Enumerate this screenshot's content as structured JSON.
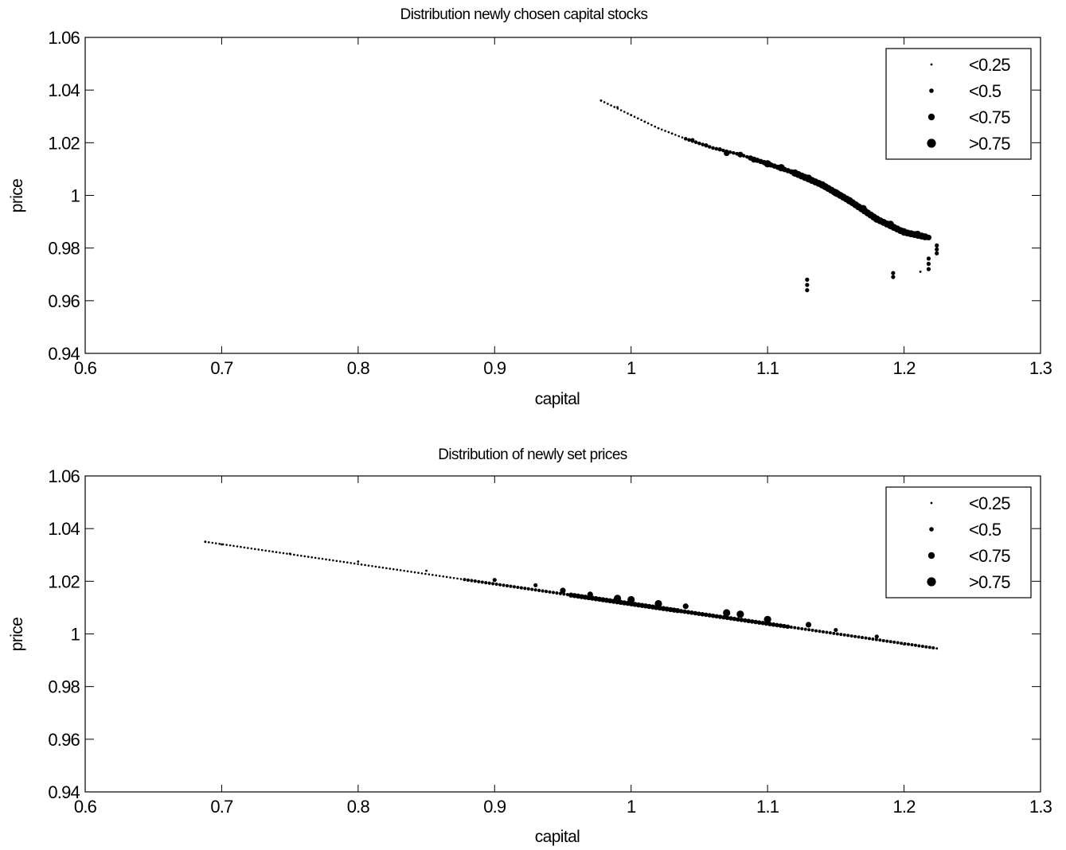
{
  "chart_data": [
    {
      "type": "scatter",
      "title": "Distribution newly chosen capital stocks",
      "xlabel": "capital",
      "ylabel": "price",
      "xlim": [
        0.6,
        1.3
      ],
      "ylim": [
        0.94,
        1.06
      ],
      "xticks": [
        "0.6",
        "0.7",
        "0.8",
        "0.9",
        "1",
        "1.1",
        "1.2",
        "1.3"
      ],
      "yticks": [
        "0.94",
        "0.96",
        "0.98",
        "1",
        "1.02",
        "1.04",
        "1.06"
      ],
      "grid": false,
      "legend_position": "top-right",
      "legend": [
        "<0.25",
        "<0.5",
        "<0.75",
        ">0.75"
      ],
      "curve": {
        "x": [
          0.978,
          1.0,
          1.02,
          1.04,
          1.06,
          1.08,
          1.1,
          1.12,
          1.14,
          1.16,
          1.18,
          1.2,
          1.218
        ],
        "y": [
          1.036,
          1.0305,
          1.0255,
          1.0215,
          1.018,
          1.0155,
          1.012,
          1.0085,
          1.004,
          0.998,
          0.991,
          0.986,
          0.984
        ]
      },
      "series": [
        {
          "name": "<0.25",
          "x": [
            0.978,
            0.99,
            1.0,
            1.01,
            1.02,
            1.03,
            1.04,
            1.212
          ],
          "y": [
            1.036,
            1.0335,
            1.0305,
            1.028,
            1.0255,
            1.0235,
            1.0215,
            0.971
          ]
        },
        {
          "name": "<0.5",
          "x": [
            1.045,
            1.055,
            1.065,
            1.129,
            1.129,
            1.129,
            1.192,
            1.192,
            1.218,
            1.218,
            1.218,
            1.224,
            1.224,
            1.224
          ],
          "y": [
            1.021,
            1.019,
            1.0175,
            0.968,
            0.966,
            0.964,
            0.9705,
            0.969,
            0.976,
            0.974,
            0.972,
            0.981,
            0.9795,
            0.978
          ]
        },
        {
          "name": "<0.75",
          "x": [
            1.07,
            1.08,
            1.09,
            1.2,
            1.21,
            1.218
          ],
          "y": [
            1.016,
            1.0155,
            1.0135,
            0.9865,
            0.9855,
            0.984
          ]
        },
        {
          "name": ">0.75",
          "x": [
            1.1,
            1.11,
            1.12,
            1.13,
            1.14,
            1.15,
            1.16,
            1.17,
            1.18,
            1.19
          ],
          "y": [
            1.012,
            1.0105,
            1.0085,
            1.0065,
            1.004,
            1.001,
            0.998,
            0.995,
            0.991,
            0.989
          ]
        }
      ]
    },
    {
      "type": "scatter",
      "title": "Distribution of newly set prices",
      "xlabel": "capital",
      "ylabel": "price",
      "xlim": [
        0.6,
        1.3
      ],
      "ylim": [
        0.94,
        1.06
      ],
      "xticks": [
        "0.6",
        "0.7",
        "0.8",
        "0.9",
        "1",
        "1.1",
        "1.2",
        "1.3"
      ],
      "yticks": [
        "0.94",
        "0.96",
        "0.98",
        "1",
        "1.02",
        "1.04",
        "1.06"
      ],
      "grid": false,
      "legend_position": "top-right",
      "legend": [
        "<0.25",
        "<0.5",
        "<0.75",
        ">0.75"
      ],
      "curve": {
        "x": [
          0.688,
          1.224
        ],
        "y": [
          1.035,
          0.9945
        ]
      },
      "series": [
        {
          "name": "<0.25",
          "x": [
            0.688,
            0.7,
            0.75,
            0.8,
            0.85,
            1.2,
            1.224
          ],
          "y": [
            1.035,
            1.034,
            1.0305,
            1.0275,
            1.024,
            0.996,
            0.9945
          ]
        },
        {
          "name": "<0.5",
          "x": [
            0.9,
            0.93,
            1.15,
            1.18
          ],
          "y": [
            1.0205,
            1.0185,
            1.0015,
            0.999
          ]
        },
        {
          "name": "<0.75",
          "x": [
            0.95,
            0.97,
            1.04,
            1.13
          ],
          "y": [
            1.0165,
            1.015,
            1.0105,
            1.0035
          ]
        },
        {
          "name": ">0.75",
          "x": [
            0.99,
            1.0,
            1.02,
            1.07,
            1.08,
            1.1
          ],
          "y": [
            1.0135,
            1.013,
            1.0115,
            1.008,
            1.0075,
            1.0055
          ]
        }
      ]
    }
  ]
}
